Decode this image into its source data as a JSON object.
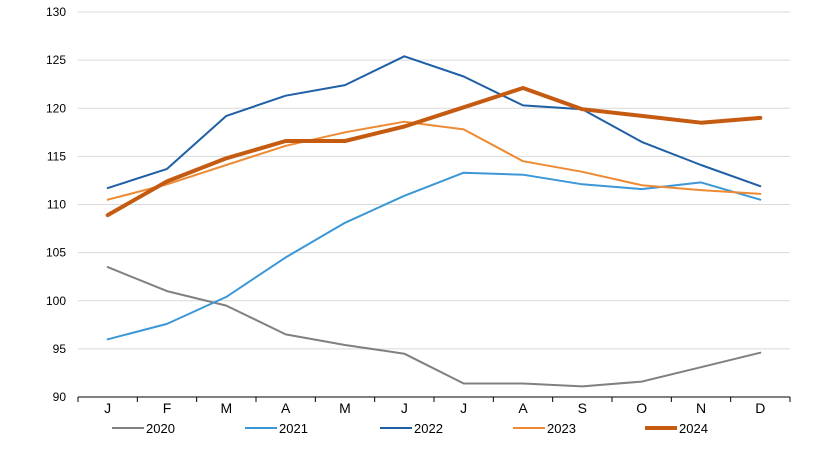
{
  "chart_data": {
    "type": "line",
    "title": "",
    "xlabel": "",
    "ylabel": "",
    "categories": [
      "J",
      "F",
      "M",
      "A",
      "M",
      "J",
      "J",
      "A",
      "S",
      "O",
      "N",
      "D"
    ],
    "ylim": [
      90,
      130
    ],
    "yticks": [
      90,
      95,
      100,
      105,
      110,
      115,
      120,
      125,
      130
    ],
    "grid": true,
    "legend_position": "bottom",
    "series": [
      {
        "name": "2020",
        "color": "#808080",
        "values": [
          103.5,
          101.0,
          99.5,
          96.5,
          95.4,
          94.5,
          91.4,
          91.4,
          91.1,
          91.6,
          93.1,
          94.6
        ]
      },
      {
        "name": "2021",
        "color": "#3c97d6",
        "values": [
          96.0,
          97.6,
          100.4,
          104.5,
          108.1,
          110.9,
          113.3,
          113.1,
          112.1,
          111.6,
          112.3,
          110.5
        ]
      },
      {
        "name": "2022",
        "color": "#1f5fa6",
        "values": [
          111.7,
          113.7,
          119.2,
          121.3,
          122.4,
          125.4,
          123.3,
          120.3,
          119.9,
          116.5,
          114.1,
          111.9
        ]
      },
      {
        "name": "2023",
        "color": "#ed8a33",
        "values": [
          110.5,
          112.1,
          114.1,
          116.1,
          117.5,
          118.6,
          117.8,
          114.5,
          113.4,
          112.0,
          111.5,
          111.1
        ]
      },
      {
        "name": "2024",
        "color": "#c55a11",
        "values": [
          108.9,
          112.4,
          114.8,
          116.6,
          116.6,
          118.1,
          120.1,
          122.1,
          119.9,
          119.2,
          118.5,
          119.0
        ]
      }
    ]
  }
}
